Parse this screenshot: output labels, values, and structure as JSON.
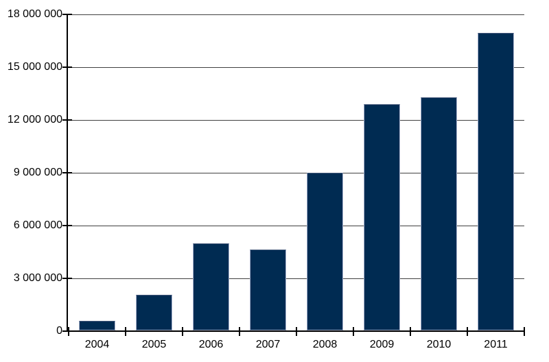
{
  "chart_data": {
    "type": "bar",
    "title": "",
    "xlabel": "",
    "ylabel": "",
    "categories": [
      "2004",
      "2005",
      "2006",
      "2007",
      "2008",
      "2009",
      "2010",
      "2011"
    ],
    "values": [
      600000,
      2050000,
      5000000,
      4650000,
      9000000,
      12900000,
      13300000,
      16950000
    ],
    "ylim": [
      0,
      18000000
    ],
    "ytick_interval": 3000000,
    "ytick_labels": [
      "0",
      "3 000 000",
      "6 000 000",
      "9 000 000",
      "12 000 000",
      "15 000 000",
      "18 000 000"
    ],
    "grid": true,
    "legend": "none"
  },
  "style": {
    "background": "#FFFFFF",
    "bar_fill": "#002B52",
    "bar_border": "#A8B1CC",
    "bar_border_top": "#45587A",
    "axis_color": "#000000",
    "gridline_color": "#404040",
    "label_color": "#000000"
  }
}
